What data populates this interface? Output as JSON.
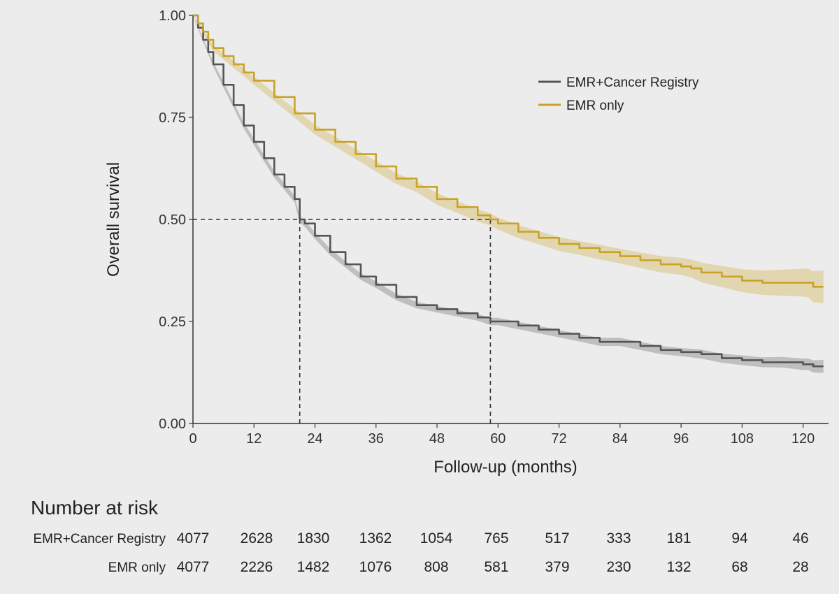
{
  "chart_data": {
    "type": "line",
    "xlabel": "Follow-up (months)",
    "ylabel": "Overall survival",
    "xlim": [
      0,
      125
    ],
    "ylim": [
      0,
      1
    ],
    "x_ticks": [
      0,
      12,
      24,
      36,
      48,
      60,
      72,
      84,
      96,
      108,
      120
    ],
    "y_ticks": [
      "0.00",
      "0.25",
      "0.50",
      "0.75",
      "1.00"
    ],
    "grid": false,
    "legend_position": "top-right",
    "series": [
      {
        "name": "EMR+Cancer Registry",
        "color": "#555555",
        "x": [
          0,
          1,
          2,
          3,
          4,
          6,
          8,
          10,
          12,
          14,
          16,
          18,
          20,
          21,
          22,
          24,
          27,
          30,
          33,
          36,
          40,
          44,
          48,
          52,
          56,
          58.5,
          60,
          64,
          68,
          72,
          76,
          80,
          84,
          88,
          92,
          96,
          100,
          104,
          108,
          112,
          116,
          120,
          121,
          122,
          124
        ],
        "y": [
          1.0,
          0.97,
          0.94,
          0.91,
          0.88,
          0.83,
          0.78,
          0.73,
          0.69,
          0.65,
          0.61,
          0.58,
          0.55,
          0.5,
          0.49,
          0.46,
          0.42,
          0.39,
          0.36,
          0.34,
          0.31,
          0.29,
          0.28,
          0.27,
          0.26,
          0.25,
          0.25,
          0.24,
          0.23,
          0.22,
          0.21,
          0.2,
          0.2,
          0.19,
          0.18,
          0.175,
          0.17,
          0.16,
          0.155,
          0.15,
          0.15,
          0.145,
          0.145,
          0.14,
          0.14
        ],
        "ci_halfwidth": [
          0,
          0.003,
          0.004,
          0.005,
          0.006,
          0.007,
          0.007,
          0.007,
          0.008,
          0.008,
          0.008,
          0.008,
          0.008,
          0.008,
          0.008,
          0.008,
          0.008,
          0.008,
          0.008,
          0.008,
          0.008,
          0.008,
          0.008,
          0.008,
          0.008,
          0.009,
          0.009,
          0.009,
          0.009,
          0.009,
          0.009,
          0.01,
          0.01,
          0.01,
          0.01,
          0.01,
          0.011,
          0.011,
          0.012,
          0.012,
          0.013,
          0.014,
          0.014,
          0.015,
          0.016
        ]
      },
      {
        "name": "EMR only",
        "color": "#c9a227",
        "x": [
          0,
          1,
          2,
          3,
          4,
          6,
          8,
          10,
          12,
          16,
          20,
          24,
          28,
          32,
          36,
          40,
          44,
          48,
          52,
          56,
          58.5,
          60,
          64,
          68,
          72,
          76,
          80,
          84,
          88,
          92,
          96,
          98,
          100,
          104,
          108,
          112,
          116,
          120,
          121,
          122,
          124
        ],
        "y": [
          1.0,
          0.98,
          0.96,
          0.94,
          0.92,
          0.9,
          0.88,
          0.86,
          0.84,
          0.8,
          0.76,
          0.72,
          0.69,
          0.66,
          0.63,
          0.6,
          0.58,
          0.55,
          0.53,
          0.51,
          0.5,
          0.49,
          0.47,
          0.455,
          0.44,
          0.43,
          0.42,
          0.41,
          0.4,
          0.39,
          0.385,
          0.38,
          0.37,
          0.36,
          0.35,
          0.345,
          0.345,
          0.345,
          0.345,
          0.335,
          0.335
        ],
        "ci_halfwidth": [
          0,
          0.004,
          0.005,
          0.006,
          0.007,
          0.008,
          0.009,
          0.009,
          0.01,
          0.01,
          0.011,
          0.012,
          0.012,
          0.012,
          0.013,
          0.013,
          0.013,
          0.014,
          0.014,
          0.015,
          0.015,
          0.015,
          0.016,
          0.016,
          0.017,
          0.017,
          0.018,
          0.018,
          0.019,
          0.02,
          0.021,
          0.022,
          0.024,
          0.026,
          0.028,
          0.03,
          0.032,
          0.034,
          0.035,
          0.038,
          0.04
        ]
      }
    ],
    "reference_lines": {
      "y": 0.5,
      "medians": [
        21,
        58.5
      ]
    },
    "risk_table": {
      "title": "Number at risk",
      "times": [
        0,
        12,
        24,
        36,
        48,
        60,
        72,
        84,
        96,
        108,
        120
      ],
      "rows": [
        {
          "label": "EMR+Cancer Registry",
          "values": [
            4077,
            2628,
            1830,
            1362,
            1054,
            765,
            517,
            333,
            181,
            94,
            46
          ]
        },
        {
          "label": "EMR only",
          "values": [
            4077,
            2226,
            1482,
            1076,
            808,
            581,
            379,
            230,
            132,
            68,
            28
          ]
        }
      ]
    }
  }
}
